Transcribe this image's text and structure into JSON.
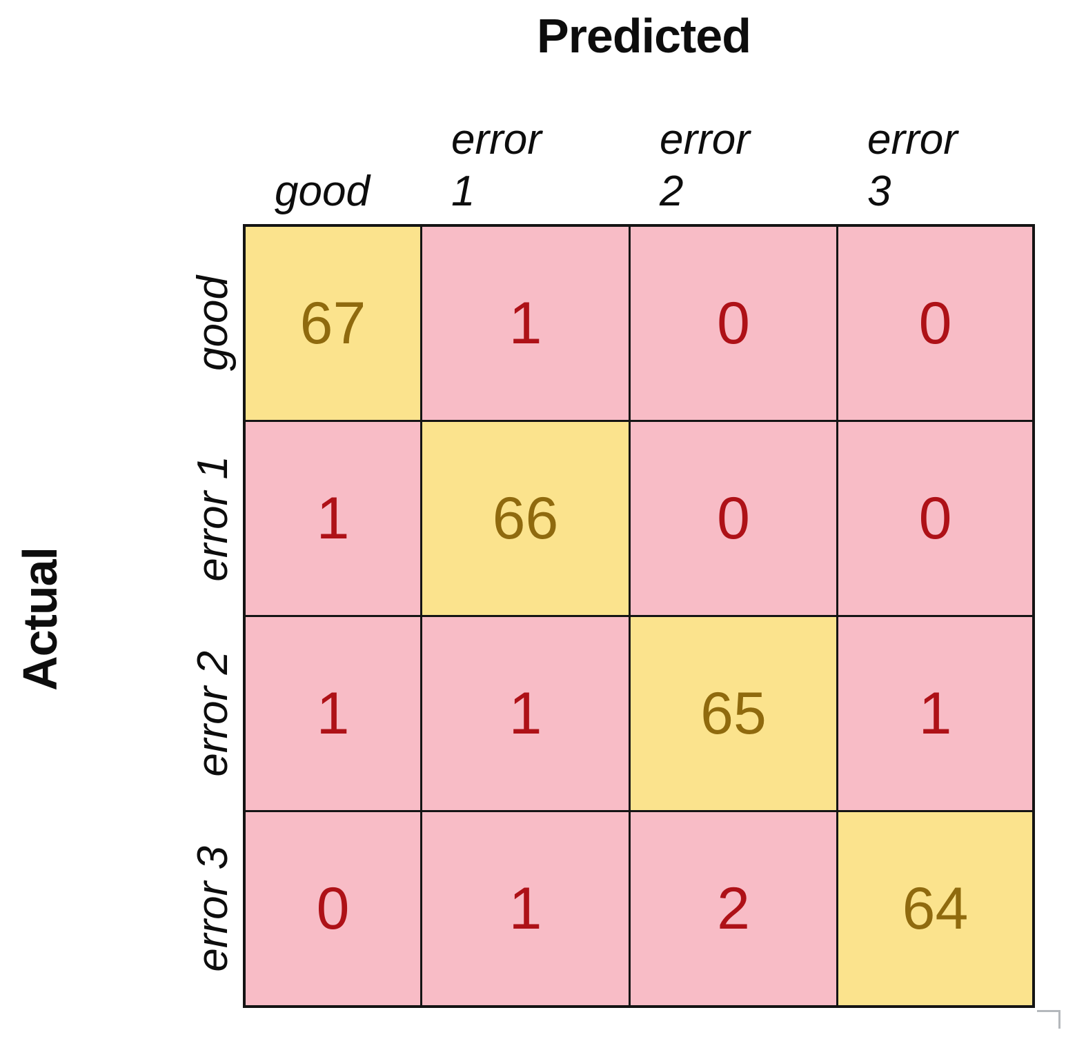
{
  "chart_data": {
    "type": "heatmap",
    "subtype": "confusion_matrix",
    "x_axis_title": "Predicted",
    "y_axis_title": "Actual",
    "x_categories": [
      "good",
      "error 1",
      "error 2",
      "error 3"
    ],
    "y_categories": [
      "good",
      "error 1",
      "error 2",
      "error 3"
    ],
    "col_header_lines": [
      [
        "good"
      ],
      [
        "error",
        "1"
      ],
      [
        "error",
        "2"
      ],
      [
        "error",
        "3"
      ]
    ],
    "row_labels": [
      "good",
      "error 1",
      "error 2",
      "error 3"
    ],
    "matrix": [
      [
        67,
        1,
        0,
        0
      ],
      [
        1,
        66,
        0,
        0
      ],
      [
        1,
        1,
        65,
        1
      ],
      [
        0,
        1,
        2,
        64
      ]
    ],
    "legend": "none",
    "grid": true,
    "colors": {
      "diagonal_fill": "#fbe38d",
      "diagonal_text": "#8f6a0e",
      "off_diagonal_fill": "#f8bcc6",
      "off_diagonal_text": "#ae1117",
      "grid_border": "#141414",
      "label_text": "#0d0d0d",
      "corner_mark": "#b4b8bc"
    }
  }
}
